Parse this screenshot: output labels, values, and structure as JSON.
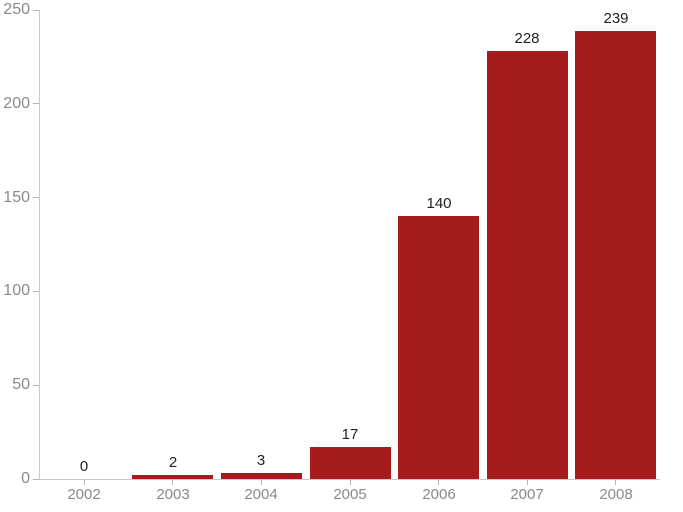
{
  "chart_data": {
    "type": "bar",
    "title": "",
    "xlabel": "",
    "ylabel": "",
    "categories": [
      "2002",
      "2003",
      "2004",
      "2005",
      "2006",
      "2007",
      "2008"
    ],
    "values": [
      0,
      2,
      3,
      17,
      140,
      228,
      239
    ],
    "value_labels": [
      "0",
      "2",
      "3",
      "17",
      "140",
      "228",
      "239"
    ],
    "ylim": [
      0,
      250
    ],
    "yticks": [
      0,
      50,
      100,
      150,
      200,
      250
    ],
    "ytick_labels": [
      "0",
      "50",
      "100",
      "150",
      "200",
      "250"
    ],
    "grid": false,
    "legend": "none",
    "colors": {
      "bar": "#a61b1c",
      "axis_line": "#c9c9c9",
      "tick_mark": "#b3b3b3",
      "axis_tick_label": "#8a8a8a",
      "value_label": "#222222",
      "background": "#ffffff"
    }
  }
}
